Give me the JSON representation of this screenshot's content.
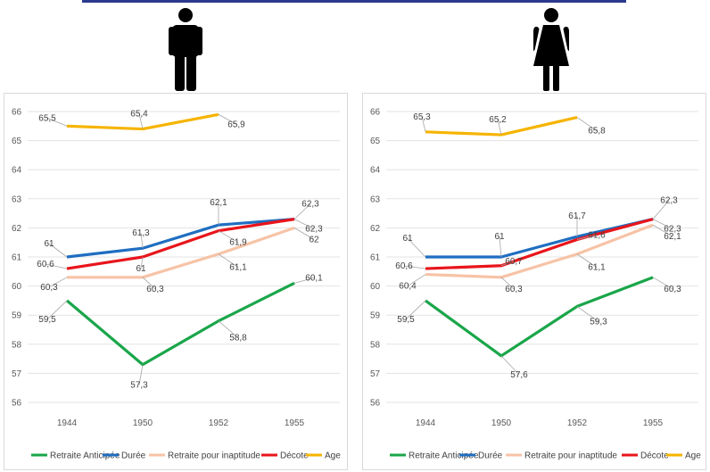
{
  "colors": {
    "retraite_anticipee": "#1aa64a",
    "duree": "#1f6ec1",
    "inaptitude": "#f7c3a6",
    "decote": "#e8151b",
    "age": "#f6b400"
  },
  "icons": {
    "left": "man-icon",
    "right": "woman-icon"
  },
  "chart_data": [
    {
      "type": "line",
      "categories": [
        "1944",
        "1950",
        "1952",
        "1955"
      ],
      "ylim": [
        56,
        66
      ],
      "yticks": [
        "56",
        "57",
        "58",
        "59",
        "60",
        "61",
        "62",
        "63",
        "64",
        "65",
        "66"
      ],
      "grid": true,
      "legend_position": "bottom",
      "series": [
        {
          "name": "Retraite Anticipée",
          "values": [
            59.5,
            57.3,
            58.8,
            60.1
          ],
          "labels": [
            "59,5",
            "57,3",
            "58,8",
            "60,1"
          ]
        },
        {
          "name": "Durée",
          "values": [
            61,
            61.3,
            62.1,
            62.3
          ],
          "labels": [
            "61",
            "61,3",
            "62,1",
            "62,3"
          ]
        },
        {
          "name": "Retraite pour inaptitude",
          "values": [
            60.3,
            60.3,
            61.1,
            62
          ],
          "labels": [
            "60,3",
            "60,3",
            "61,1",
            "62"
          ]
        },
        {
          "name": "Décote",
          "values": [
            60.6,
            61,
            61.9,
            62.3
          ],
          "labels": [
            "60,6",
            "61",
            "61,9",
            "62,3"
          ]
        },
        {
          "name": "Age",
          "values": [
            65.5,
            65.4,
            65.9,
            null
          ],
          "labels": [
            "65,5",
            "65,4",
            "65,9",
            null
          ]
        }
      ]
    },
    {
      "type": "line",
      "categories": [
        "1944",
        "1950",
        "1952",
        "1955"
      ],
      "ylim": [
        56,
        66
      ],
      "yticks": [
        "56",
        "57",
        "58",
        "59",
        "60",
        "61",
        "62",
        "63",
        "64",
        "65",
        "66"
      ],
      "grid": true,
      "legend_position": "bottom",
      "series": [
        {
          "name": "Retraite Anticipée",
          "values": [
            59.5,
            57.6,
            59.3,
            60.3
          ],
          "labels": [
            "59,5",
            "57,6",
            "59,3",
            "60,3"
          ]
        },
        {
          "name": "Durée",
          "values": [
            61,
            61,
            61.7,
            62.3
          ],
          "labels": [
            "61",
            "61",
            "61,7",
            "62,3"
          ]
        },
        {
          "name": "Retraite pour inaptitude",
          "values": [
            60.4,
            60.3,
            61.1,
            62.1
          ],
          "labels": [
            "60,4",
            "60,3",
            "61,1",
            "62,1"
          ]
        },
        {
          "name": "Décote",
          "values": [
            60.6,
            60.7,
            61.6,
            62.3
          ],
          "labels": [
            "60,6",
            "60,7",
            "61,6",
            "62,3"
          ]
        },
        {
          "name": "Age",
          "values": [
            65.3,
            65.2,
            65.8,
            null
          ],
          "labels": [
            "65,3",
            "65,2",
            "65,8",
            null
          ]
        }
      ]
    }
  ]
}
